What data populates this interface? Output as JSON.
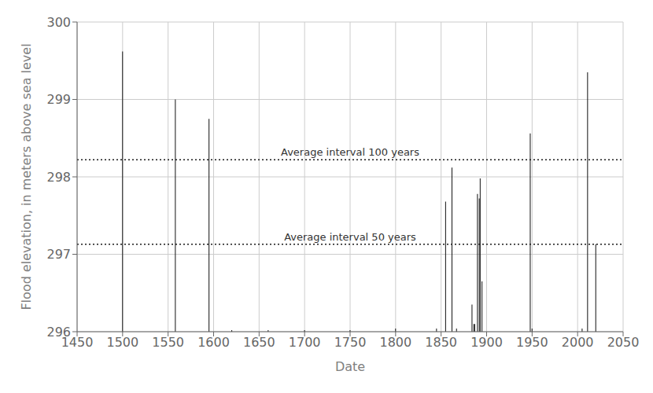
{
  "chart_data": {
    "type": "stem",
    "xlabel": "Date",
    "ylabel": "Flood elevation, in meters above sea level",
    "x": [
      1500,
      1558,
      1595,
      1620,
      1660,
      1700,
      1750,
      1800,
      1845,
      1855,
      1862,
      1867,
      1884,
      1886,
      1887,
      1890,
      1892,
      1893,
      1895,
      1948,
      1950,
      2005,
      2011,
      2020
    ],
    "values": [
      299.62,
      299.0,
      298.75,
      296.02,
      296.02,
      296.02,
      296.02,
      296.04,
      296.04,
      297.68,
      298.12,
      296.04,
      296.35,
      296.1,
      296.1,
      297.78,
      297.72,
      297.98,
      296.65,
      298.56,
      296.04,
      296.04,
      299.35,
      297.13
    ],
    "color": "#1a1a1a",
    "xlim": [
      1450,
      2050
    ],
    "ylim": [
      296,
      300
    ],
    "xticks": [
      1450,
      1500,
      1550,
      1600,
      1650,
      1700,
      1750,
      1800,
      1850,
      1900,
      1950,
      2000,
      2050
    ],
    "yticks": [
      296,
      297,
      298,
      299,
      300
    ],
    "grid": true,
    "reference_lines": [
      {
        "value": 298.22,
        "label": "Average interval 100 years",
        "color": "#1a1a1a",
        "line_style": "dotted"
      },
      {
        "value": 297.13,
        "label": "Average interval 50 years",
        "color": "#1a1a1a",
        "line_style": "dotted"
      }
    ]
  }
}
